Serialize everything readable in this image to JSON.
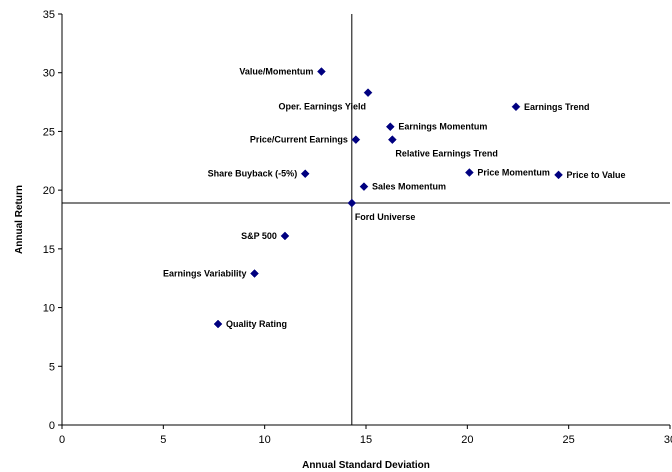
{
  "chart_data": {
    "type": "scatter",
    "title": "",
    "xlabel": "Annual Standard Deviation",
    "ylabel": "Annual Return",
    "xlim": [
      0,
      30
    ],
    "ylim": [
      0,
      35
    ],
    "x_ticks": [
      0,
      5,
      10,
      15,
      20,
      25,
      30
    ],
    "y_ticks": [
      0,
      5,
      10,
      15,
      20,
      25,
      30,
      35
    ],
    "grid": false,
    "legend": "none",
    "marker": "diamond",
    "marker_color": "#000080",
    "reference_lines": {
      "vertical_x": 14.3,
      "horizontal_y": 18.9
    },
    "points": [
      {
        "label": "Value/Momentum",
        "x": 12.8,
        "y": 30.1,
        "label_side": "left"
      },
      {
        "label": "Oper. Earnings Yield",
        "x": 15.1,
        "y": 28.3,
        "label_side": "below-left"
      },
      {
        "label": "Earnings Trend",
        "x": 22.4,
        "y": 27.1,
        "label_side": "right"
      },
      {
        "label": "Earnings Momentum",
        "x": 16.2,
        "y": 25.4,
        "label_side": "right"
      },
      {
        "label": "Price/Current Earnings",
        "x": 14.5,
        "y": 24.3,
        "label_side": "left"
      },
      {
        "label": "Relative Earnings Trend",
        "x": 16.3,
        "y": 24.3,
        "label_side": "below-right"
      },
      {
        "label": "Share Buyback (-5%)",
        "x": 12.0,
        "y": 21.4,
        "label_side": "left"
      },
      {
        "label": "Price Momentum",
        "x": 20.1,
        "y": 21.5,
        "label_side": "right"
      },
      {
        "label": "Price to Value",
        "x": 24.5,
        "y": 21.3,
        "label_side": "right"
      },
      {
        "label": "Sales Momentum",
        "x": 14.9,
        "y": 20.3,
        "label_side": "right"
      },
      {
        "label": "Ford Universe",
        "x": 14.3,
        "y": 18.9,
        "label_side": "below-right"
      },
      {
        "label": "S&P 500",
        "x": 11.0,
        "y": 16.1,
        "label_side": "left"
      },
      {
        "label": "Earnings Variability",
        "x": 9.5,
        "y": 12.9,
        "label_side": "left"
      },
      {
        "label": "Quality Rating",
        "x": 7.7,
        "y": 8.6,
        "label_side": "right"
      }
    ]
  }
}
